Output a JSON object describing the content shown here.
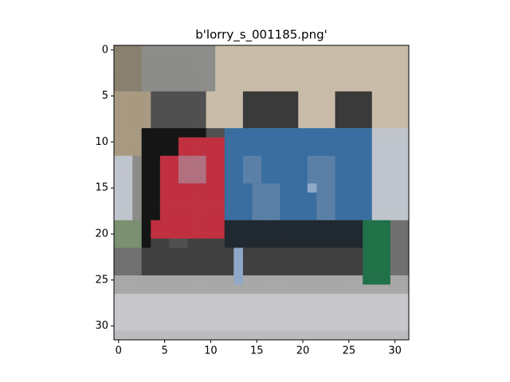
{
  "chart_data": {
    "type": "image",
    "title": "b'lorry_s_001185.png'",
    "palette": {
      "a": "#8a8070",
      "g": "#8c8c88",
      "e": "#c8bca8",
      "t": "#a89a80",
      "d": "#505050",
      "k": "#3a3a3a",
      "b": "#151515",
      "u": "#3a6ea0",
      "v": "#5a80a8",
      "l": "#c0c4cc",
      "r": "#c03040",
      "p": "#b07080",
      "o": "#7a9070",
      "n": "#202830",
      "G": "#207048",
      "m": "#707070",
      "x": "#404040",
      "s": "#90a8c8",
      "h": "#a8a8a8",
      "w": "#c8c8cc",
      "y": "#bcbcc0"
    },
    "rows": [
      "aaaggggggggeeeeeeeeeeeeeeeeeeeee",
      "aaaggggggggeeeeeeeeeeeeeeeeeeeee",
      "aaaggggggggeeeeeeeeeeeeeeeeeeeee",
      "aaaggggggggeeeeeeeeeeeeeeeeeeeee",
      "aaaggggggggeeeeeeeeeeeeeeeeeeeee",
      "ttttddddddeeeekkkkkkeeeekkkkeeee",
      "ttttddddddeeeekkkkkkeeeekkkkeeee",
      "ttttddddddeeeekkkkkkeeeekkkkeeee",
      "ttttddddddeeeekkkkkkeeeekkkkeeee",
      "tttbbbbbbbdduuuuuuuuuuuuuuuullll",
      "tttbbbbrrrrruuuuuuuuuuuuuuuullll",
      "tttbbbbrrrrruuuuuuuuuuuuuuuullll",
      "llgbbrrppprruuvvuuuuuvvvuuuullll",
      "llgbbrrppprruuvvuuuuuvvvuuuullll",
      "llgbbrrppprruuvvuuuuuvvvuuuullll",
      "llgbbrrrrrrruuuvvvuuusvvuuuullll",
      "llgbbrrrrrrruuuvvvuuuuvvuuuullll",
      "llgbbrrrrrrruuuvvvuuuuvvuuuullll",
      "llgbbrrrrrrruuuvvvuuuuvvuuuullll",
      "ooobrrrrrrrrnnnnnnnnnnnnnnnGGGmm",
      "ooobrrrrrrrrnnnnnnnnnnnnnnnGGGmm",
      "ooobxxddxxxxnnnnnnnnnnnnnnnGGGmm",
      "mmmxxxxxxxxxxsxxxxxxxxxxxxxGGGmm",
      "mmmxxxxxxxxxxsxxxxxxxxxxxxxGGGmm",
      "mmmxxxxxxxxxxsxxxxxxxxxxxxxGGGmm",
      "hhhhhhhhhhhhhshhhhhhhhhhhhhGGGhh",
      "hhhhhhhhhhhhhhhhhhhhhhhhhhhhhhhh",
      "wwwwwwwwwwwwwwwwwwwwwwwwwwwwwwww",
      "wwwwwwwwwwwwwwwwwwwwwwwwwwwwwwww",
      "wwwwwwwwwwwwwwwwwwwwwwwwwwwwwwww",
      "wwwwwwwwwwwwwwwwwwwwwwwwwwwwwwww",
      "yyyyyyyyyyyyyyyyyyyyyyyyyyyyyyyy"
    ],
    "xlim": [
      -0.5,
      31.5
    ],
    "ylim": [
      31.5,
      -0.5
    ],
    "xticks": [
      0,
      5,
      10,
      15,
      20,
      25,
      30
    ],
    "yticks": [
      0,
      5,
      10,
      15,
      20,
      25,
      30
    ]
  }
}
